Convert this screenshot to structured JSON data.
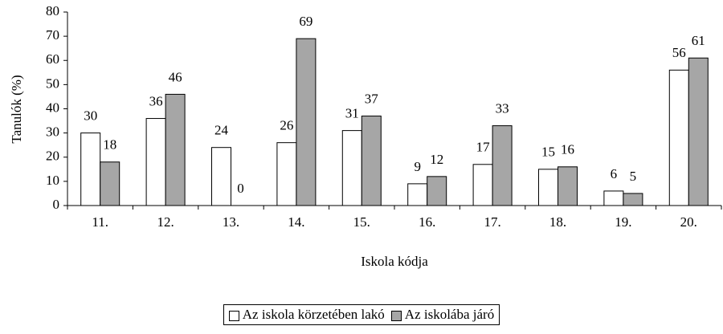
{
  "chart_data": {
    "type": "bar",
    "x_label": "Iskola kódja",
    "y_label": "Tanulók (%)",
    "categories": [
      "11.",
      "12.",
      "13.",
      "14.",
      "15.",
      "16.",
      "17.",
      "18.",
      "19.",
      "20."
    ],
    "series": [
      {
        "name": "Az iskola körzetében lakó",
        "color": "#ffffff",
        "values": [
          30,
          36,
          24,
          26,
          31,
          9,
          17,
          15,
          6,
          56
        ]
      },
      {
        "name": "Az iskolába járó",
        "color": "#a6a6a6",
        "values": [
          18,
          46,
          0,
          69,
          37,
          12,
          33,
          16,
          5,
          61
        ]
      }
    ],
    "ylim": [
      0,
      80
    ],
    "yticks": [
      0,
      10,
      20,
      30,
      40,
      50,
      60,
      70,
      80
    ],
    "grid": false,
    "legend": "bottom"
  }
}
